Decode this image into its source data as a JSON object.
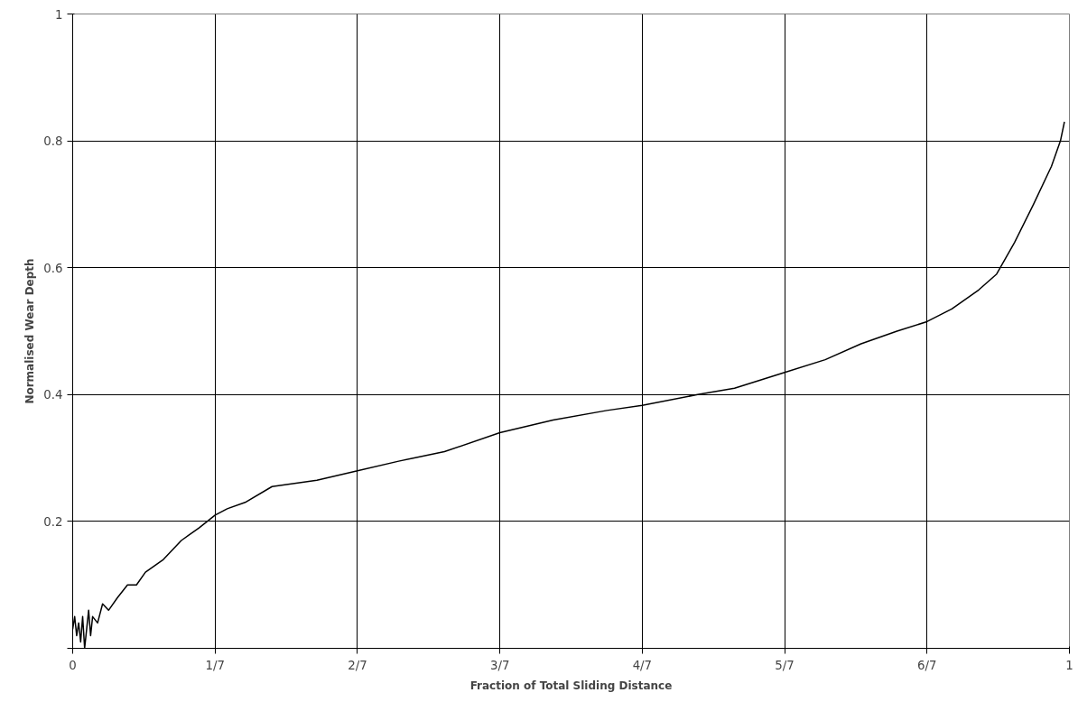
{
  "chart_data": {
    "type": "line",
    "xlabel": "Fraction of Total Sliding Distance",
    "ylabel": "Normalised Wear Depth",
    "xlim": [
      0,
      1
    ],
    "ylim": [
      0,
      1
    ],
    "xticks": [
      0,
      {
        "value": 0.142857,
        "label": "1/7"
      },
      {
        "value": 0.285714,
        "label": "2/7"
      },
      {
        "value": 0.428571,
        "label": "3/7"
      },
      {
        "value": 0.571429,
        "label": "4/7"
      },
      {
        "value": 0.714286,
        "label": "5/7"
      },
      {
        "value": 0.857143,
        "label": "6/7"
      },
      1
    ],
    "yticks": [
      {
        "value": 0,
        "label": null
      },
      0.2,
      0.4,
      0.6,
      0.8,
      1
    ],
    "grid": true,
    "marker": "none",
    "line_style": "solid",
    "series": [
      {
        "color": "#000000",
        "x": [
          0.0,
          0.002,
          0.004,
          0.006,
          0.008,
          0.01,
          0.012,
          0.014,
          0.016,
          0.018,
          0.02,
          0.025,
          0.03,
          0.036,
          0.045,
          0.055,
          0.064,
          0.073,
          0.082,
          0.091,
          0.1,
          0.109,
          0.118,
          0.127,
          0.1429,
          0.155,
          0.173,
          0.2,
          0.245,
          0.2857,
          0.327,
          0.373,
          0.4286,
          0.482,
          0.536,
          0.5714,
          0.627,
          0.664,
          0.7143,
          0.755,
          0.791,
          0.827,
          0.8571,
          0.882,
          0.909,
          0.927,
          0.945,
          0.964,
          0.982,
          0.991,
          0.995
        ],
        "values": [
          0.03,
          0.05,
          0.02,
          0.04,
          0.01,
          0.05,
          0.0,
          0.03,
          0.06,
          0.02,
          0.05,
          0.04,
          0.07,
          0.06,
          0.08,
          0.1,
          0.1,
          0.12,
          0.13,
          0.14,
          0.155,
          0.17,
          0.18,
          0.19,
          0.21,
          0.22,
          0.23,
          0.255,
          0.265,
          0.28,
          0.295,
          0.31,
          0.34,
          0.36,
          0.375,
          0.383,
          0.4,
          0.41,
          0.435,
          0.455,
          0.48,
          0.5,
          0.515,
          0.535,
          0.565,
          0.59,
          0.64,
          0.7,
          0.76,
          0.8,
          0.83
        ]
      }
    ]
  }
}
